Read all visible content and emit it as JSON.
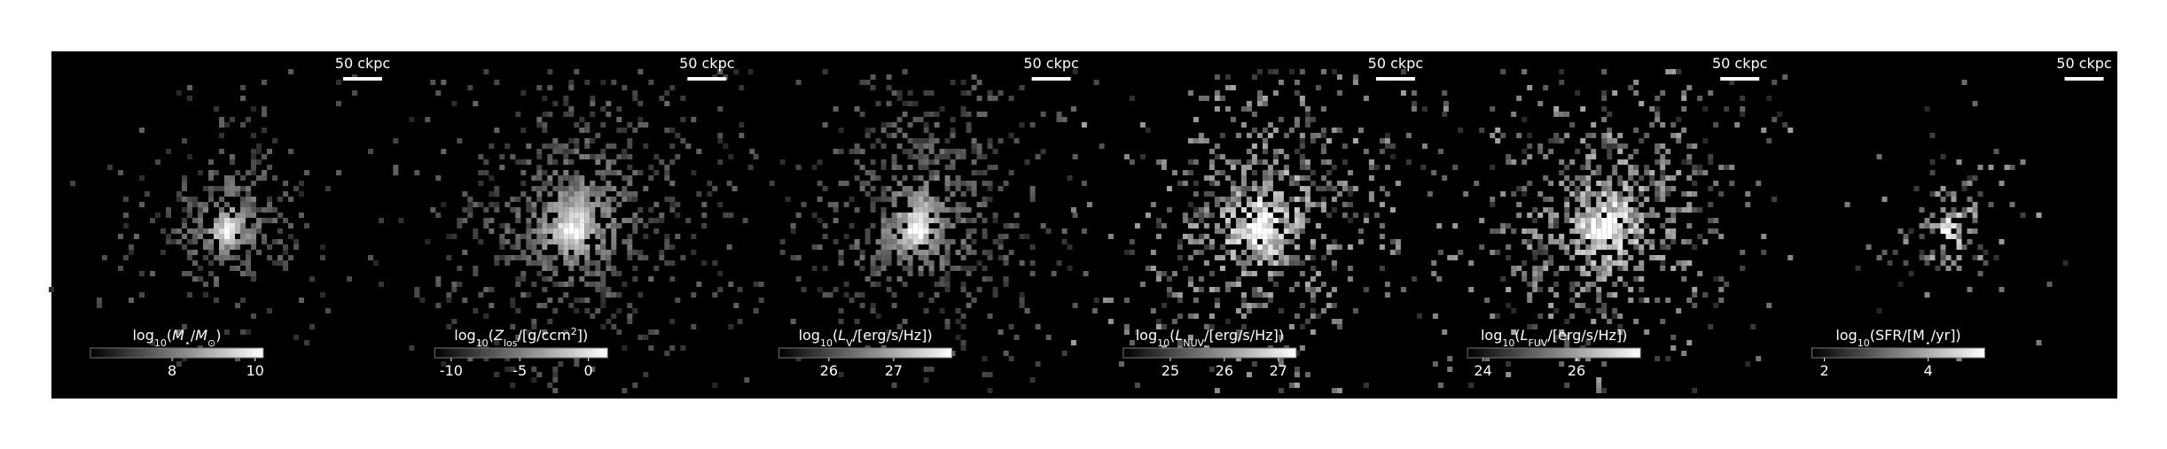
{
  "panels": [
    {
      "scale_label": "50 ckpc",
      "label": [
        {
          "t": "log"
        },
        {
          "s": "10"
        },
        {
          "t": "("
        },
        {
          "i": "M"
        },
        {
          "s": "⋆"
        },
        {
          "t": "/"
        },
        {
          "i": "M"
        },
        {
          "s": "⊙"
        },
        {
          "t": ")"
        }
      ],
      "cbar_lim": [
        6.03,
        10.2
      ],
      "cbar_ticks": [
        8,
        10
      ]
    },
    {
      "scale_label": "50 ckpc",
      "label": [
        {
          "t": "log"
        },
        {
          "s": "10"
        },
        {
          "t": "("
        },
        {
          "i": "Z"
        },
        {
          "s": "los"
        },
        {
          "t": "/[g/ccm"
        },
        {
          "u": "2"
        },
        {
          "t": "])"
        }
      ],
      "cbar_lim": [
        -11.2,
        1.4
      ],
      "cbar_ticks": [
        -10,
        -5,
        0
      ]
    },
    {
      "scale_label": "50 ckpc",
      "label": [
        {
          "t": "log"
        },
        {
          "s": "10"
        },
        {
          "t": "("
        },
        {
          "i": "L"
        },
        {
          "s": "V"
        },
        {
          "t": "/[erg/s/Hz])"
        }
      ],
      "cbar_lim": [
        25.23,
        27.9
      ],
      "cbar_ticks": [
        26,
        27
      ]
    },
    {
      "scale_label": "50 ckpc",
      "label": [
        {
          "t": "log"
        },
        {
          "s": "10"
        },
        {
          "t": "("
        },
        {
          "i": "L"
        },
        {
          "s": "NUV"
        },
        {
          "t": "/[erg/s/Hz])"
        }
      ],
      "cbar_lim": [
        24.13,
        27.33
      ],
      "cbar_ticks": [
        25,
        26,
        27
      ]
    },
    {
      "scale_label": "50 ckpc",
      "label": [
        {
          "t": "log"
        },
        {
          "s": "10"
        },
        {
          "t": "("
        },
        {
          "i": "L"
        },
        {
          "s": "FUV"
        },
        {
          "t": "/[erg/s/Hz])"
        }
      ],
      "cbar_lim": [
        23.67,
        27.37
      ],
      "cbar_ticks": [
        24,
        26
      ]
    },
    {
      "scale_label": "50 ckpc",
      "label": [
        {
          "t": "log"
        },
        {
          "s": "10"
        },
        {
          "t": "(SFR/[M"
        },
        {
          "s": "⋆"
        },
        {
          "t": "/yr])"
        }
      ],
      "cbar_lim": [
        1.76,
        5.09
      ],
      "cbar_ticks": [
        2,
        4
      ]
    }
  ]
}
